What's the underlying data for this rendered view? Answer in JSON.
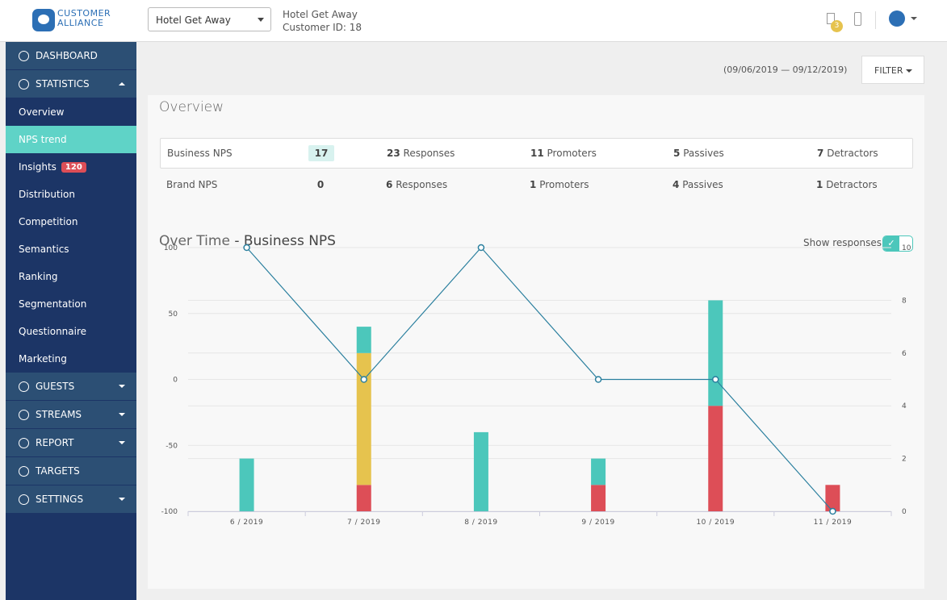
{
  "header": {
    "logo": [
      "CUSTOMER",
      "ALLIANCE"
    ],
    "hotel_select": "Hotel Get Away",
    "hotel_name": "Hotel Get Away",
    "customer_id": "Customer ID: 18",
    "notification_count": 3
  },
  "sidebar": {
    "items": [
      {
        "label": "DASHBOARD",
        "level": 1
      },
      {
        "label": "STATISTICS",
        "level": 1
      },
      {
        "label": "Overview",
        "level": 2
      },
      {
        "label": "NPS trend",
        "level": 2,
        "active": true
      },
      {
        "label": "Insights",
        "level": 2,
        "badge": 120
      },
      {
        "label": "Distribution",
        "level": 2
      },
      {
        "label": "Competition",
        "level": 2
      },
      {
        "label": "Semantics",
        "level": 2
      },
      {
        "label": "Ranking",
        "level": 2
      },
      {
        "label": "Segmentation",
        "level": 2
      },
      {
        "label": "Questionnaire",
        "level": 2
      },
      {
        "label": "Marketing",
        "level": 2
      },
      {
        "label": "GUESTS",
        "level": 1
      },
      {
        "label": "STREAMS",
        "level": 1
      },
      {
        "label": "REPORT",
        "level": 1
      },
      {
        "label": "TARGETS",
        "level": 1
      },
      {
        "label": "SETTINGS",
        "level": 1
      }
    ]
  },
  "toolbar": {
    "date_range": "(09/06/2019 — 09/12/2019)",
    "filter": "FILTER"
  },
  "overview": {
    "title": "Overview",
    "rows": [
      {
        "label": "Business NPS",
        "nps": 17,
        "cells": [
          {
            "count": 23,
            "label": "Responses"
          },
          {
            "count": 11,
            "label": "Promoters"
          },
          {
            "count": 5,
            "label": "Passives"
          },
          {
            "count": 7,
            "label": "Detractors"
          }
        ]
      },
      {
        "label": "Brand NPS",
        "nps": 0,
        "cells": [
          {
            "count": 6,
            "label": "Responses"
          },
          {
            "count": 1,
            "label": "Promoters"
          },
          {
            "count": 4,
            "label": "Passives"
          },
          {
            "count": 1,
            "label": "Detractors"
          }
        ]
      }
    ]
  },
  "over_time": {
    "title": "Over Time",
    "subtitle": "- Business NPS",
    "toggle_label": "Show responses"
  },
  "chart_data": {
    "type": "bar",
    "stacked": true,
    "categories": [
      "6 / 2019",
      "7 / 2019",
      "8 / 2019",
      "9 / 2019",
      "10 / 2019",
      "11 / 2019"
    ],
    "series": [
      {
        "color": "#dd4e57",
        "axis": "y2",
        "values": [
          0,
          1,
          0,
          1,
          4,
          1
        ]
      },
      {
        "color": "#e6c34e",
        "axis": "y2",
        "values": [
          0,
          5,
          0,
          0,
          0,
          0
        ]
      },
      {
        "color": "#4cc7bb",
        "axis": "y2",
        "values": [
          2,
          1,
          3,
          1,
          4,
          0
        ]
      },
      {
        "type": "line",
        "color": "#2a7f9e",
        "values": [
          100,
          0,
          100,
          0,
          0,
          -100
        ]
      }
    ],
    "ylim": [
      -100,
      100
    ],
    "yticks": [
      -100,
      -50,
      0,
      50,
      100
    ],
    "y2lim": [
      0,
      10
    ],
    "y2ticks": [
      0,
      2,
      4,
      6,
      8,
      10
    ],
    "grid": true
  }
}
